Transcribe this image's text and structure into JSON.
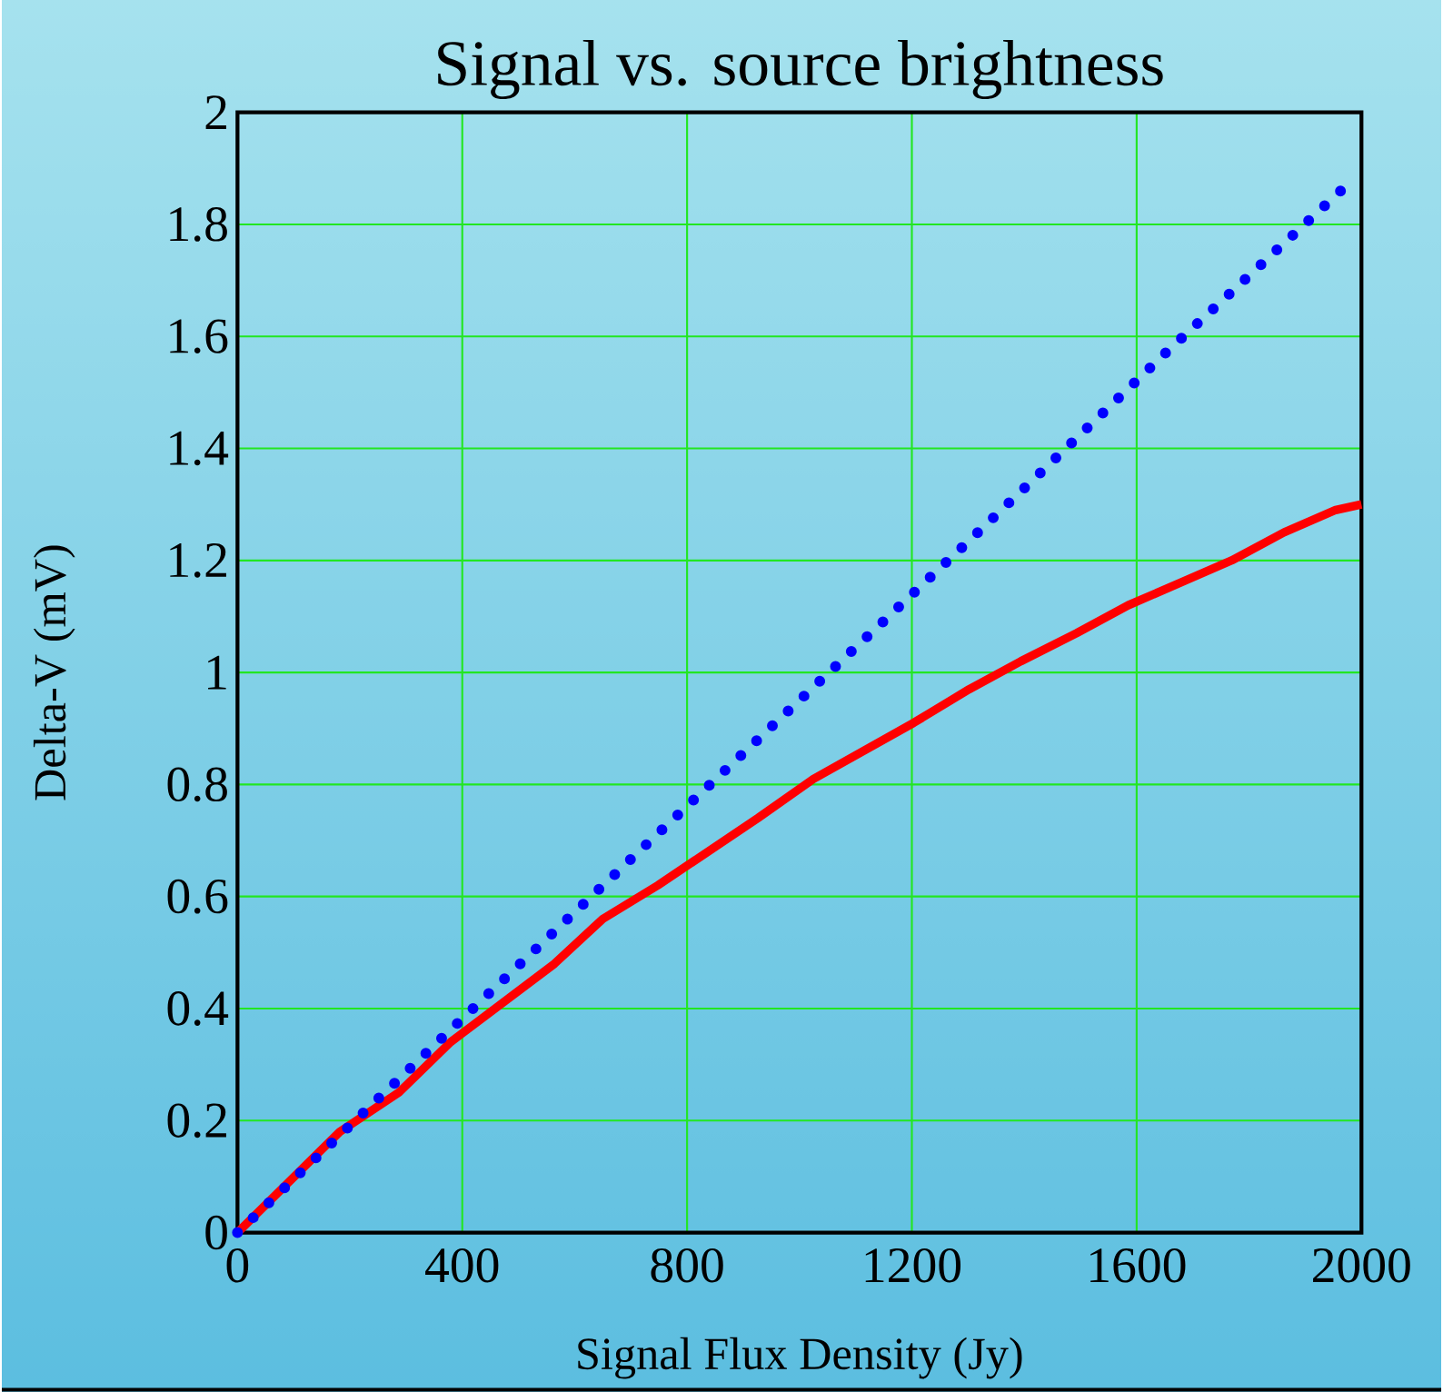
{
  "chart_data": {
    "type": "line",
    "title": "Signal vs. source brightness",
    "xlabel": "Signal Flux Density  (Jy)",
    "ylabel": "Delta-V (mV)",
    "xlim": [
      0,
      2000
    ],
    "ylim": [
      0,
      2
    ],
    "xticks": [
      0,
      400,
      800,
      1200,
      1600,
      2000
    ],
    "yticks": [
      0,
      0.2,
      0.4,
      0.6,
      0.8,
      1,
      1.2,
      1.4,
      1.6,
      1.8,
      2
    ],
    "grid": true,
    "series": [
      {
        "color": "#ff0000",
        "line_style": "solid",
        "x": [
          0,
          182,
          287,
          379,
          564,
          650,
          748,
          926,
          1025,
          1203,
          1302,
          1394,
          1493,
          1585,
          1677,
          1769,
          1862,
          1954,
          2000
        ],
        "values": [
          0,
          0.18,
          0.25,
          0.34,
          0.48,
          0.56,
          0.62,
          0.74,
          0.81,
          0.91,
          0.97,
          1.02,
          1.07,
          1.12,
          1.16,
          1.2,
          1.25,
          1.29,
          1.3
        ]
      },
      {
        "color": "#0000ff",
        "line_style": "dotted",
        "x": [
          0,
          419,
          735,
          1328,
          1651,
          1974
        ],
        "values": [
          0,
          0.4,
          0.7,
          1.26,
          1.57,
          1.87
        ]
      }
    ]
  }
}
